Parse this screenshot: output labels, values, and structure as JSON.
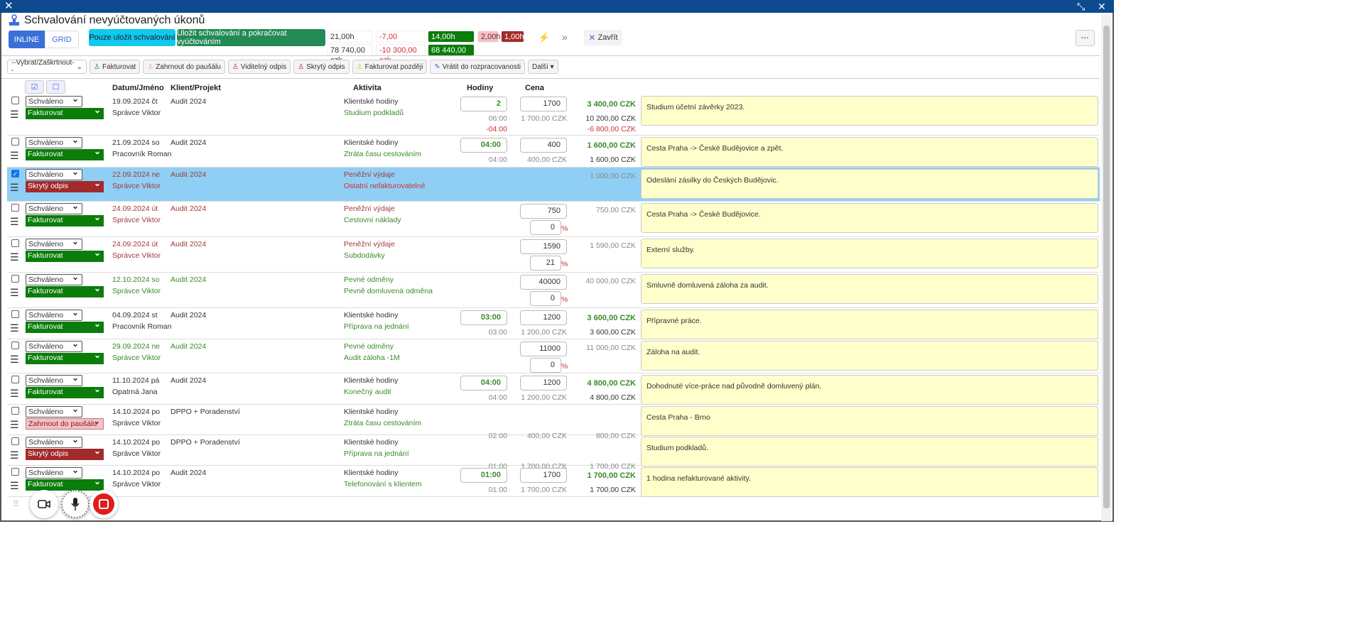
{
  "window": {
    "close_icon": "x",
    "compress_icon": "compress-arrows"
  },
  "title": "Schvalování nevyúčtovaných úkonů",
  "view_tabs": [
    "INLINE",
    "GRID"
  ],
  "buttons": {
    "save_only": "Pouze uložit schvalování",
    "save_continue": "Uložit schvalování a pokračovat vyúčtováním",
    "close": "Zavřít",
    "more": "···"
  },
  "summary": {
    "total_hours": "21,00h",
    "total_czk": "78 740,00 czk",
    "diff_hours": "-7,00",
    "diff_czk": "-10 300,00 czk",
    "bill_hours": "14,00h",
    "bill_czk": "68 440,00 czk",
    "flat_hours": "2,00h",
    "hidden_hours": "1,00h"
  },
  "colors": {
    "accent": "#3b6fd8",
    "cyan": "#12c8ec",
    "green": "#238a55",
    "bill": "#0a7d0a",
    "hidden": "#a32a2a",
    "flat": "#f4c2c8",
    "selected_row": "#8fcff5",
    "note_bg": "#ffffcc"
  },
  "toolbar": {
    "select": "--Vybrat/Zaškrtnout--",
    "items": [
      "Fakturovat",
      "Zahrnout do paušálu",
      "Viditelný odpis",
      "Skrytý odpis",
      "Fakturovat později",
      "Vrátit do rozpracovanosti",
      "Další ▾"
    ]
  },
  "columns": {
    "date_name": "Datum/Jméno",
    "client": "Klient/Projekt",
    "activity": "Aktivita",
    "hours": "Hodiny",
    "price": "Cena"
  },
  "rows": [
    {
      "checked": false,
      "status": "Schváleno",
      "action": "Fakturovat",
      "kind": "fak",
      "tone": "",
      "date": "19.09.2024 čt",
      "name": "Správce Viktor",
      "client": "Audit 2024",
      "activity": "Klientské hodiny",
      "sub": "Studium podkladů",
      "subtone": "grn",
      "hours": "2",
      "hours_orig": "06:00",
      "hours_diff": "-04:00",
      "price": "1700",
      "price_orig": "1 700,00 CZK",
      "pct": "",
      "total": "3 400,00 CZK",
      "total_orig": "10 200,00 CZK",
      "total_diff": "-6 800,00 CZK",
      "note": "Studium účetní závěrky 2023."
    },
    {
      "checked": false,
      "status": "Schváleno",
      "action": "Fakturovat",
      "kind": "fak",
      "tone": "",
      "date": "21.09.2024 so",
      "name": "Pracovník Roman",
      "client": "Audit 2024",
      "activity": "Klientské hodiny",
      "sub": "Ztráta času cestováním",
      "subtone": "grn",
      "hours": "04:00",
      "hours_orig": "04:00",
      "hours_diff": "",
      "price": "400",
      "price_orig": "400,00 CZK",
      "pct": "",
      "total": "1 600,00 CZK",
      "total_orig": "1 600,00 CZK",
      "total_diff": "",
      "note": "Cesta Praha -> České Budějovice a zpět."
    },
    {
      "checked": true,
      "status": "Schváleno",
      "action": "Skrytý odpis",
      "kind": "skr",
      "tone": "red",
      "date": "22.09.2024 ne",
      "name": "Správce Viktor",
      "client": "Audit 2024",
      "activity": "Peněžní výdaje",
      "sub": "Ostatní nefakturovatelné",
      "subtone": "neg",
      "hours": "",
      "hours_orig": "",
      "hours_diff": "",
      "price": "",
      "price_orig": "",
      "pct": "",
      "total": "",
      "total_orig": "1 000,00 CZK",
      "total_diff": "",
      "note": "Odeslání zásilky do Českých Budějovic."
    },
    {
      "checked": false,
      "status": "Schváleno",
      "action": "Fakturovat",
      "kind": "fak",
      "tone": "red",
      "date": "24.09.2024 út",
      "name": "Správce Viktor",
      "client": "Audit 2024",
      "activity": "Peněžní výdaje",
      "sub": "Cestovní náklady",
      "subtone": "grn",
      "hours": "",
      "hours_orig": "",
      "hours_diff": "",
      "price": "750",
      "price_orig": "",
      "pct": "0",
      "total": "",
      "total_orig": "750,00 CZK",
      "total_diff": "",
      "note": "Cesta Praha -> České Budějovice."
    },
    {
      "checked": false,
      "status": "Schváleno",
      "action": "Fakturovat",
      "kind": "fak",
      "tone": "red",
      "date": "24.09.2024 út",
      "name": "Správce Viktor",
      "client": "Audit 2024",
      "activity": "Peněžní výdaje",
      "sub": "Subdodávky",
      "subtone": "grn",
      "hours": "",
      "hours_orig": "",
      "hours_diff": "",
      "price": "1590",
      "price_orig": "",
      "pct": "21",
      "total": "",
      "total_orig": "1 590,00 CZK",
      "total_diff": "",
      "note": "Externí služby."
    },
    {
      "checked": false,
      "status": "Schváleno",
      "action": "Fakturovat",
      "kind": "fak",
      "tone": "grn",
      "date": "12.10.2024 so",
      "name": "Správce Viktor",
      "client": "Audit 2024",
      "activity": "Pevné odměny",
      "sub": "Pevně domluvená odměna",
      "subtone": "grn",
      "hours": "",
      "hours_orig": "",
      "hours_diff": "",
      "price": "40000",
      "price_orig": "",
      "pct": "0",
      "total": "",
      "total_orig": "40 000,00 CZK",
      "total_diff": "",
      "note": "Smluvně domluvená záloha za audit."
    },
    {
      "checked": false,
      "status": "Schváleno",
      "action": "Fakturovat",
      "kind": "fak",
      "tone": "",
      "date": "04.09.2024 st",
      "name": "Pracovník Roman",
      "client": "Audit 2024",
      "activity": "Klientské hodiny",
      "sub": "Příprava na jednání",
      "subtone": "grn",
      "hours": "03:00",
      "hours_orig": "03:00",
      "hours_diff": "",
      "price": "1200",
      "price_orig": "1 200,00 CZK",
      "pct": "",
      "total": "3 600,00 CZK",
      "total_orig": "3 600,00 CZK",
      "total_diff": "",
      "note": "Přípravné práce."
    },
    {
      "checked": false,
      "status": "Schváleno",
      "action": "Fakturovat",
      "kind": "fak",
      "tone": "grn",
      "date": "29.09.2024 ne",
      "name": "Správce Viktor",
      "client": "Audit 2024",
      "activity": "Pevné odměny",
      "sub": "Audit záloha -1M",
      "subtone": "grn",
      "hours": "",
      "hours_orig": "",
      "hours_diff": "",
      "price": "11000",
      "price_orig": "",
      "pct": "0",
      "total": "",
      "total_orig": "11 000,00 CZK",
      "total_diff": "",
      "note": "Záloha na audit."
    },
    {
      "checked": false,
      "status": "Schváleno",
      "action": "Fakturovat",
      "kind": "fak",
      "tone": "",
      "date": "11.10.2024 pá",
      "name": "Opatrná Jana",
      "client": "Audit 2024",
      "activity": "Klientské hodiny",
      "sub": "Konečný audit",
      "subtone": "grn",
      "hours": "04:00",
      "hours_orig": "04:00",
      "hours_diff": "",
      "price": "1200",
      "price_orig": "1 200,00 CZK",
      "pct": "",
      "total": "4 800,00 CZK",
      "total_orig": "4 800,00 CZK",
      "total_diff": "",
      "note": "Dohodnuté více-práce nad původně domluvený plán."
    },
    {
      "checked": false,
      "status": "Schváleno",
      "action": "Zahrnout do paušálu",
      "kind": "zah",
      "tone": "",
      "date": "14.10.2024 po",
      "name": "Správce Viktor",
      "client": "DPPO + Poradenství",
      "activity": "Klientské hodiny",
      "sub": "Ztráta času cestováním",
      "subtone": "grn",
      "hours": "",
      "hours_orig": "02:00",
      "hours_diff": "",
      "price": "",
      "price_orig": "400,00 CZK",
      "pct": "",
      "total": "",
      "total_orig": "800,00 CZK",
      "total_diff": "",
      "note": "Cesta Praha - Brno"
    },
    {
      "checked": false,
      "status": "Schváleno",
      "action": "Skrytý odpis",
      "kind": "skr",
      "tone": "",
      "date": "14.10.2024 po",
      "name": "Správce Viktor",
      "client": "DPPO + Poradenství",
      "activity": "Klientské hodiny",
      "sub": "Příprava na jednání",
      "subtone": "grn",
      "hours": "",
      "hours_orig": "01:00",
      "hours_diff": "",
      "price": "",
      "price_orig": "1 700,00 CZK",
      "pct": "",
      "total": "",
      "total_orig": "1 700,00 CZK",
      "total_diff": "",
      "note": "Studium podkladů."
    },
    {
      "checked": false,
      "status": "Schváleno",
      "action": "Fakturovat",
      "kind": "fak",
      "tone": "",
      "date": "14.10.2024 po",
      "name": "Správce Viktor",
      "client": "Audit 2024",
      "activity": "Klientské hodiny",
      "sub": "Telefonování s klientem",
      "subtone": "grn",
      "hours": "01:00",
      "hours_orig": "01:00",
      "hours_diff": "",
      "price": "1700",
      "price_orig": "1 700,00 CZK",
      "pct": "",
      "total": "1 700,00 CZK",
      "total_orig": "1 700,00 CZK",
      "total_diff": "",
      "note": "1 hodina nefakturované aktivity."
    }
  ],
  "percent_sign": "%",
  "recorder": {
    "icons": [
      "drag-handle",
      "camera",
      "microphone",
      "stop"
    ]
  }
}
